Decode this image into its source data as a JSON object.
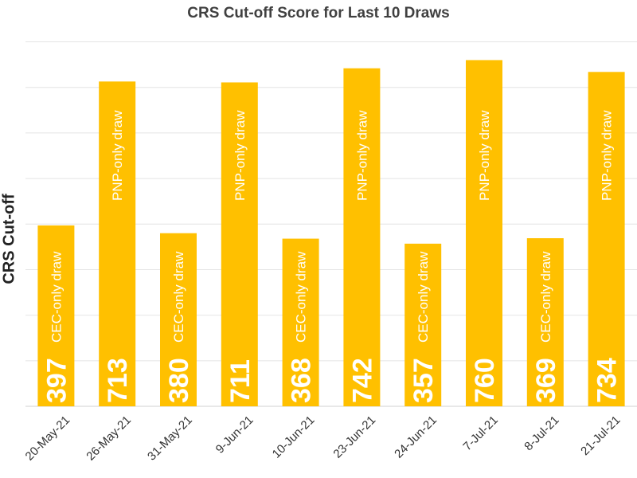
{
  "chart_data": {
    "type": "bar",
    "title": "CRS Cut-off Score for Last 10 Draws",
    "xlabel": "",
    "ylabel": "CRS Cut-off",
    "categories": [
      "20-May-21",
      "26-May-21",
      "31-May-21",
      "9-Jun-21",
      "10-Jun-21",
      "23-Jun-21",
      "24-Jun-21",
      "7-Jul-21",
      "8-Jul-21",
      "21-Jul-21"
    ],
    "values": [
      397,
      713,
      380,
      711,
      368,
      742,
      357,
      760,
      369,
      734
    ],
    "annotations": [
      "CEC-only draw",
      "PNP-only draw",
      "CEC-only draw",
      "PNP-only draw",
      "CEC-only draw",
      "PNP-only draw",
      "CEC-only draw",
      "PNP-only draw",
      "CEC-only draw",
      "PNP-only draw"
    ],
    "ylim": [
      0,
      800
    ],
    "grid": true,
    "legend": "none",
    "bar_color": "#FFC000",
    "label_color": "#FFFFFF"
  }
}
